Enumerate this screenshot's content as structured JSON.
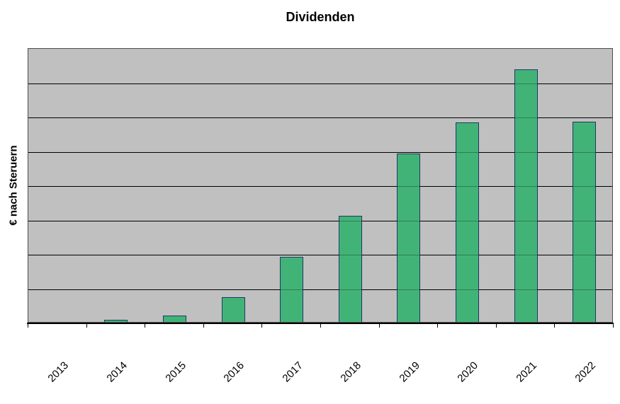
{
  "title": "Dividenden",
  "y_axis_label": "€ nach Steruern",
  "colors": {
    "page_bg": "#ffffff",
    "plot_bg": "#c0c0c0",
    "bar_fill": "#42b377",
    "bar_border": "#1f3864",
    "gridline": "#000000",
    "text": "#000000"
  },
  "chart_data": {
    "type": "bar",
    "title": "Dividenden",
    "xlabel": "",
    "ylabel": "€ nach Steruern",
    "categories": [
      "2013",
      "2014",
      "2015",
      "2016",
      "2017",
      "2018",
      "2019",
      "2020",
      "2021",
      "2022"
    ],
    "values": [
      0,
      0.06,
      0.19,
      0.72,
      1.89,
      3.09,
      4.91,
      5.81,
      7.36,
      5.83
    ],
    "value_units": "gridline-units",
    "ylim": [
      0,
      8
    ],
    "gridline_interval": 1,
    "y_tick_labels_visible": false,
    "x_tick_label_rotation_deg": 45,
    "grid": true,
    "legend": "none",
    "series_count": 1
  }
}
